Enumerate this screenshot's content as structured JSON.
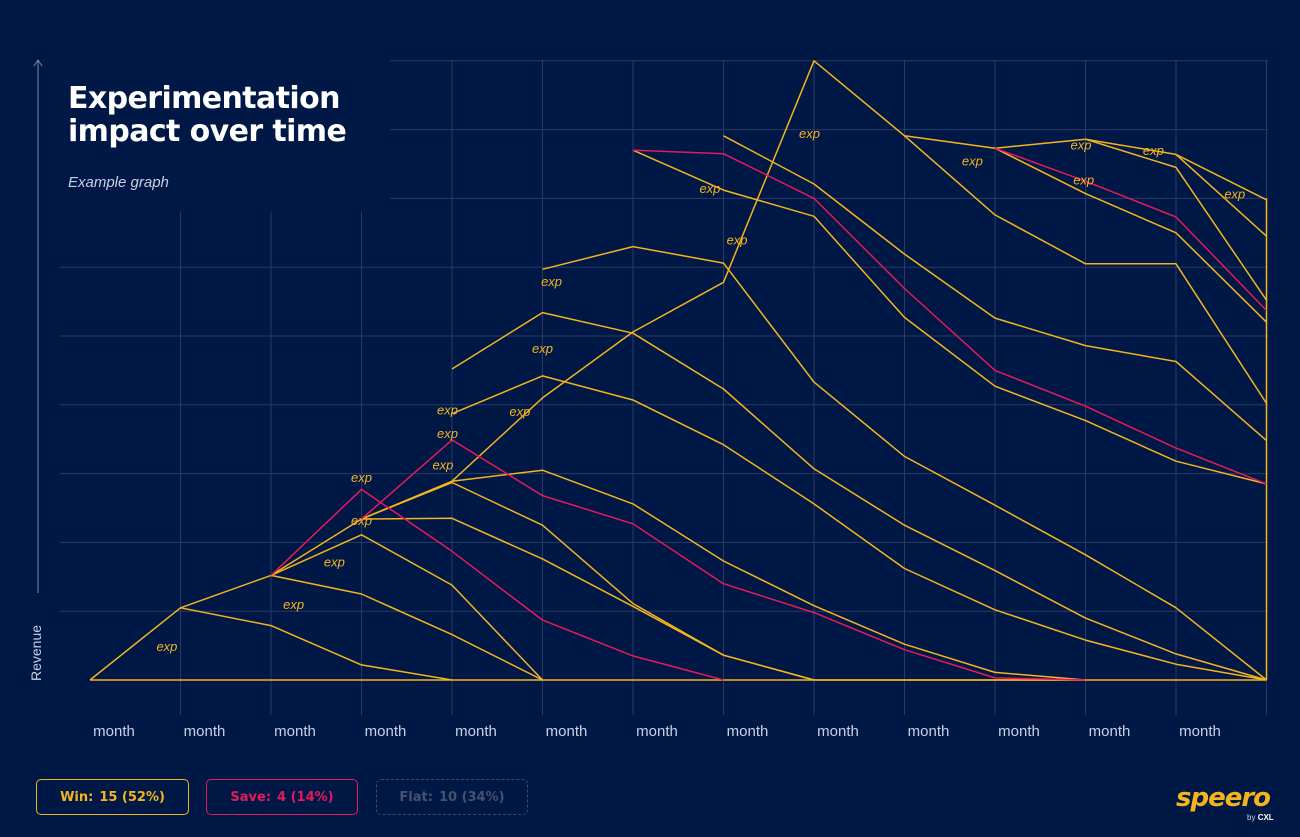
{
  "header": {
    "title_line1": "Experimentation",
    "title_line2": "impact over time",
    "subtitle": "Example graph"
  },
  "legend": {
    "win_label": "Win:",
    "win_value": "15 (52%)",
    "save_label": "Save:",
    "save_value": "4 (14%)",
    "flat_label": "Flat:",
    "flat_value": "10 (34%)"
  },
  "brand": {
    "name": "speero",
    "by": "by",
    "by_brand": "CXL"
  },
  "colors": {
    "background": "#001845",
    "win": "#f5b41e",
    "save": "#e8195a",
    "flat": "#3d4a6a",
    "grid": "#2a3a63",
    "text": "#c9d1e3"
  },
  "chart_data": {
    "type": "line",
    "title": "Experimentation impact over time",
    "subtitle": "Example graph",
    "ylabel": "Revenue",
    "xlabel": "",
    "categories": [
      "month",
      "month",
      "month",
      "month",
      "month",
      "month",
      "month",
      "month",
      "month",
      "month",
      "month",
      "month",
      "month"
    ],
    "x_range": [
      0,
      13
    ],
    "y_range": [
      0,
      9
    ],
    "grid": true,
    "annotation_text": "exp",
    "annotations": [
      {
        "x": 0.85,
        "y": 0.42
      },
      {
        "x": 2.25,
        "y": 1.03
      },
      {
        "x": 2.7,
        "y": 1.65
      },
      {
        "x": 3.0,
        "y": 2.25
      },
      {
        "x": 3.0,
        "y": 2.88
      },
      {
        "x": 3.9,
        "y": 3.06
      },
      {
        "x": 3.95,
        "y": 3.52
      },
      {
        "x": 3.95,
        "y": 3.86
      },
      {
        "x": 4.75,
        "y": 3.84
      },
      {
        "x": 5.0,
        "y": 4.75
      },
      {
        "x": 5.1,
        "y": 5.73
      },
      {
        "x": 6.85,
        "y": 7.08
      },
      {
        "x": 7.15,
        "y": 6.33
      },
      {
        "x": 7.95,
        "y": 7.88
      },
      {
        "x": 9.75,
        "y": 7.48
      },
      {
        "x": 10.95,
        "y": 7.71
      },
      {
        "x": 10.98,
        "y": 7.2
      },
      {
        "x": 11.75,
        "y": 7.63
      },
      {
        "x": 12.65,
        "y": 7.0
      }
    ],
    "series": [
      {
        "kind": "win",
        "points": [
          [
            0,
            0
          ],
          [
            13,
            0
          ]
        ]
      },
      {
        "kind": "win",
        "points": [
          [
            0,
            0
          ],
          [
            1,
            1.05
          ],
          [
            2,
            1.52
          ],
          [
            3,
            2.34
          ],
          [
            4,
            2.89
          ],
          [
            5,
            4.1
          ],
          [
            6,
            5.06
          ],
          [
            7,
            5.78
          ],
          [
            8,
            9
          ],
          [
            9,
            7.91
          ],
          [
            10,
            7.73
          ],
          [
            11,
            7.86
          ],
          [
            12,
            7.64
          ],
          [
            13,
            6.98
          ]
        ]
      },
      {
        "kind": "win",
        "points": [
          [
            1,
            1.05
          ],
          [
            2,
            0.79
          ],
          [
            3,
            0.22
          ],
          [
            4,
            0
          ]
        ]
      },
      {
        "kind": "win",
        "points": [
          [
            2,
            1.52
          ],
          [
            3,
            1.25
          ],
          [
            4,
            0.66
          ],
          [
            5,
            0
          ]
        ]
      },
      {
        "kind": "win",
        "points": [
          [
            2,
            1.52
          ],
          [
            3,
            2.11
          ],
          [
            4,
            1.38
          ],
          [
            5,
            0
          ]
        ]
      },
      {
        "kind": "save",
        "points": [
          [
            2,
            1.52
          ],
          [
            3,
            2.77
          ],
          [
            4,
            1.87
          ],
          [
            5,
            0.87
          ],
          [
            6,
            0.35
          ],
          [
            7,
            0
          ]
        ]
      },
      {
        "kind": "win",
        "points": [
          [
            3,
            2.34
          ],
          [
            4,
            2.87
          ],
          [
            5,
            2.25
          ],
          [
            6,
            1.11
          ],
          [
            7,
            0.36
          ],
          [
            8,
            0
          ]
        ]
      },
      {
        "kind": "save",
        "points": [
          [
            3,
            2.34
          ],
          [
            4,
            3.49
          ],
          [
            5,
            2.68
          ],
          [
            6,
            2.27
          ],
          [
            7,
            1.4
          ],
          [
            8,
            0.98
          ],
          [
            9,
            0.44
          ],
          [
            10,
            0.03
          ],
          [
            11,
            0
          ]
        ]
      },
      {
        "kind": "win",
        "points": [
          [
            3,
            2.34
          ],
          [
            4,
            2.35
          ],
          [
            5,
            1.76
          ],
          [
            6,
            1.07
          ],
          [
            7,
            0.36
          ],
          [
            8,
            0
          ],
          [
            9,
            0
          ],
          [
            10,
            0
          ],
          [
            11,
            0
          ]
        ]
      },
      {
        "kind": "win",
        "points": [
          [
            4,
            2.89
          ],
          [
            5,
            3.05
          ],
          [
            6,
            2.56
          ],
          [
            7,
            1.73
          ],
          [
            8,
            1.08
          ],
          [
            9,
            0.52
          ],
          [
            10,
            0.11
          ],
          [
            11,
            0
          ]
        ]
      },
      {
        "kind": "win",
        "points": [
          [
            4,
            3.87
          ],
          [
            5,
            4.42
          ],
          [
            6,
            4.07
          ],
          [
            7,
            3.42
          ],
          [
            8,
            2.56
          ],
          [
            9,
            1.62
          ],
          [
            10,
            1.02
          ],
          [
            11,
            0.58
          ],
          [
            12,
            0.23
          ],
          [
            13,
            0
          ]
        ]
      },
      {
        "kind": "win",
        "points": [
          [
            4,
            4.52
          ],
          [
            5,
            5.34
          ],
          [
            6,
            5.04
          ],
          [
            7,
            4.23
          ],
          [
            8,
            3.07
          ],
          [
            9,
            2.25
          ],
          [
            10,
            1.59
          ],
          [
            11,
            0.9
          ],
          [
            12,
            0.38
          ],
          [
            13,
            0
          ]
        ]
      },
      {
        "kind": "win",
        "points": [
          [
            5,
            5.97
          ],
          [
            6,
            6.3
          ],
          [
            7,
            6.06
          ],
          [
            8,
            4.33
          ],
          [
            9,
            3.25
          ],
          [
            10,
            2.54
          ],
          [
            11,
            1.82
          ],
          [
            12,
            1.05
          ],
          [
            13,
            0
          ]
        ]
      },
      {
        "kind": "save",
        "points": [
          [
            6,
            7.7
          ],
          [
            7,
            7.65
          ],
          [
            8,
            7.0
          ],
          [
            9,
            5.69
          ],
          [
            10,
            4.5
          ],
          [
            11,
            3.98
          ],
          [
            12,
            3.37
          ],
          [
            13,
            2.85
          ]
        ]
      },
      {
        "kind": "win",
        "points": [
          [
            6,
            7.7
          ],
          [
            7,
            7.12
          ],
          [
            8,
            6.74
          ],
          [
            9,
            5.27
          ],
          [
            10,
            4.27
          ],
          [
            11,
            3.77
          ],
          [
            12,
            3.18
          ],
          [
            13,
            2.85
          ]
        ]
      },
      {
        "kind": "win",
        "points": [
          [
            7,
            7.91
          ],
          [
            8,
            7.21
          ],
          [
            9,
            6.19
          ],
          [
            10,
            5.26
          ],
          [
            11,
            4.86
          ],
          [
            12,
            4.63
          ],
          [
            13,
            3.48
          ]
        ]
      },
      {
        "kind": "win",
        "points": [
          [
            9,
            7.91
          ],
          [
            10,
            6.76
          ],
          [
            11,
            6.05
          ],
          [
            12,
            6.05
          ],
          [
            13,
            4.02
          ]
        ]
      },
      {
        "kind": "save",
        "points": [
          [
            10,
            7.73
          ],
          [
            11,
            7.25
          ],
          [
            12,
            6.73
          ],
          [
            13,
            5.37
          ]
        ]
      },
      {
        "kind": "win",
        "points": [
          [
            10,
            7.73
          ],
          [
            11,
            7.07
          ],
          [
            12,
            6.5
          ],
          [
            13,
            5.2
          ]
        ]
      },
      {
        "kind": "win",
        "points": [
          [
            11,
            7.86
          ],
          [
            12,
            7.45
          ],
          [
            13,
            5.52
          ]
        ]
      },
      {
        "kind": "win",
        "points": [
          [
            12,
            7.64
          ],
          [
            13,
            6.45
          ]
        ]
      },
      {
        "kind": "win",
        "points": [
          [
            13,
            0
          ],
          [
            13,
            7
          ]
        ]
      }
    ]
  }
}
